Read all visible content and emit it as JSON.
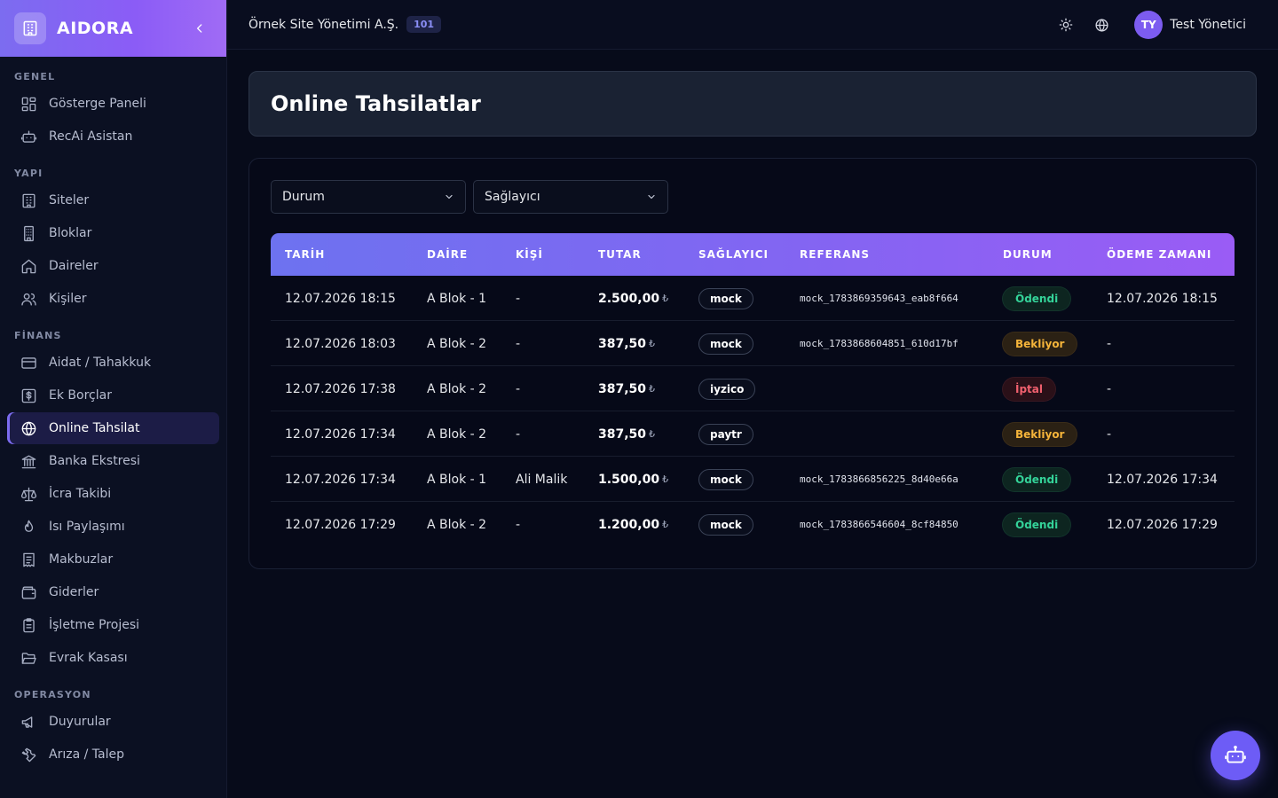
{
  "app": {
    "name": "AIDORA"
  },
  "sidebar": {
    "sections": [
      {
        "label": "GENEL",
        "items": [
          {
            "label": "Gösterge Paneli",
            "icon": "dashboard-icon"
          },
          {
            "label": "RecAi Asistan",
            "icon": "robot-icon"
          }
        ]
      },
      {
        "label": "YAPI",
        "items": [
          {
            "label": "Siteler",
            "icon": "building-icon"
          },
          {
            "label": "Bloklar",
            "icon": "block-building-icon"
          },
          {
            "label": "Daireler",
            "icon": "home-icon"
          },
          {
            "label": "Kişiler",
            "icon": "users-icon"
          }
        ]
      },
      {
        "label": "FİNANS",
        "items": [
          {
            "label": "Aidat / Tahakkuk",
            "icon": "credit-card-icon"
          },
          {
            "label": "Ek Borçlar",
            "icon": "dollar-square-icon"
          },
          {
            "label": "Online Tahsilat",
            "icon": "globe-icon",
            "active": true
          },
          {
            "label": "Banka Ekstresi",
            "icon": "bank-icon"
          },
          {
            "label": "İcra Takibi",
            "icon": "scale-icon"
          },
          {
            "label": "Isı Paylaşımı",
            "icon": "flame-icon"
          },
          {
            "label": "Makbuzlar",
            "icon": "receipt-icon"
          },
          {
            "label": "Giderler",
            "icon": "wallet-icon"
          },
          {
            "label": "İşletme Projesi",
            "icon": "clipboard-icon"
          },
          {
            "label": "Evrak Kasası",
            "icon": "folder-open-icon"
          }
        ]
      },
      {
        "label": "OPERASYON",
        "items": [
          {
            "label": "Duyurular",
            "icon": "megaphone-icon"
          },
          {
            "label": "Arıza / Talep",
            "icon": "wrench-icon"
          }
        ]
      }
    ]
  },
  "topbar": {
    "org_name": "Örnek Site Yönetimi A.Ş.",
    "org_badge": "101",
    "user_initials": "TY",
    "user_name": "Test Yönetici"
  },
  "page": {
    "title": "Online Tahsilatlar"
  },
  "filters": {
    "status_label": "Durum",
    "provider_label": "Sağlayıcı"
  },
  "table": {
    "columns": [
      "TARİH",
      "DAİRE",
      "KİŞİ",
      "TUTAR",
      "SAĞLAYICI",
      "REFERANS",
      "DURUM",
      "ÖDEME ZAMANI"
    ],
    "currency_symbol": "₺",
    "rows": [
      {
        "date": "12.07.2026 18:15",
        "unit": "A Blok - 1",
        "person": "-",
        "amount": "2.500,00",
        "provider": "mock",
        "reference": "mock_1783869359643_eab8f664",
        "status": "Ödendi",
        "status_kind": "paid",
        "paid_at": "12.07.2026 18:15"
      },
      {
        "date": "12.07.2026 18:03",
        "unit": "A Blok - 2",
        "person": "-",
        "amount": "387,50",
        "provider": "mock",
        "reference": "mock_1783868604851_610d17bf",
        "status": "Bekliyor",
        "status_kind": "wait",
        "paid_at": "-"
      },
      {
        "date": "12.07.2026 17:38",
        "unit": "A Blok - 2",
        "person": "-",
        "amount": "387,50",
        "provider": "iyzico",
        "reference": "",
        "status": "İptal",
        "status_kind": "cancel",
        "paid_at": "-"
      },
      {
        "date": "12.07.2026 17:34",
        "unit": "A Blok - 2",
        "person": "-",
        "amount": "387,50",
        "provider": "paytr",
        "reference": "",
        "status": "Bekliyor",
        "status_kind": "wait",
        "paid_at": "-"
      },
      {
        "date": "12.07.2026 17:34",
        "unit": "A Blok - 1",
        "person": "Ali Malik",
        "amount": "1.500,00",
        "provider": "mock",
        "reference": "mock_1783866856225_8d40e66a",
        "status": "Ödendi",
        "status_kind": "paid",
        "paid_at": "12.07.2026 17:34"
      },
      {
        "date": "12.07.2026 17:29",
        "unit": "A Blok - 2",
        "person": "-",
        "amount": "1.200,00",
        "provider": "mock",
        "reference": "mock_1783866546604_8cf84850",
        "status": "Ödendi",
        "status_kind": "paid",
        "paid_at": "12.07.2026 17:29"
      }
    ]
  },
  "colors": {
    "accent": "#7c6cf0",
    "paid": "#34d399",
    "waiting": "#f5b43a",
    "cancelled": "#f0606e"
  }
}
